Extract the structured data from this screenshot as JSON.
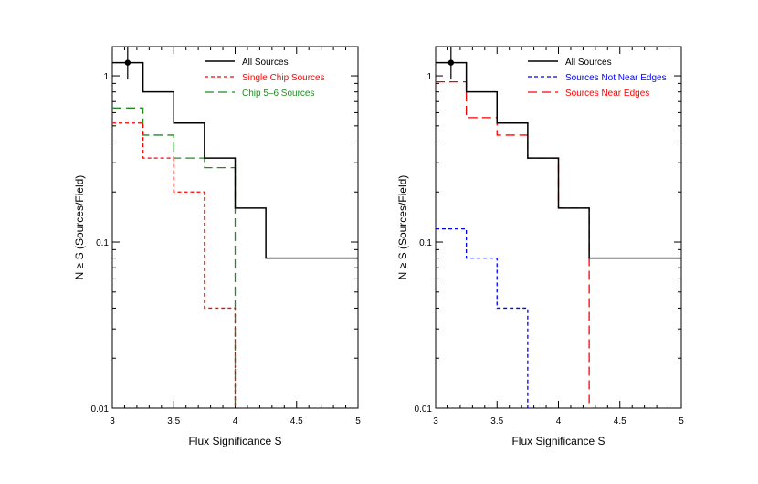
{
  "chart_data": [
    {
      "type": "step",
      "xlabel": "Flux Significance S",
      "ylabel": "N ≥ S (Sources/Field)",
      "xlim": [
        3,
        5
      ],
      "ylim": [
        0.01,
        1.5
      ],
      "yscale": "log",
      "xticks": [
        "3",
        "3.5",
        "4",
        "4.5",
        "5"
      ],
      "yticks": [
        {
          "value": 1,
          "label": "1"
        },
        {
          "value": 0.1,
          "label": "0.1"
        },
        {
          "value": 0.01,
          "label": "0.01"
        }
      ],
      "legend_position": "top-right",
      "point": {
        "x": 3.125,
        "y": 1.2,
        "yerr": [
          0.95,
          1.5
        ]
      },
      "series": [
        {
          "name": "All Sources",
          "color": "#000000",
          "dash": "solid",
          "edges": [
            3.0,
            3.25,
            3.5,
            3.75,
            4.0,
            4.25,
            5.0
          ],
          "values": [
            1.2,
            0.8,
            0.52,
            0.32,
            0.16,
            0.08
          ]
        },
        {
          "name": "Single Chip Sources",
          "color": "#ff0000",
          "dash": "short",
          "edges": [
            3.0,
            3.25,
            3.5,
            3.75,
            4.0
          ],
          "values": [
            0.52,
            0.32,
            0.2,
            0.04
          ]
        },
        {
          "name": "Chip 5–6 Sources",
          "color": "#228b22",
          "dash": "long",
          "edges": [
            3.0,
            3.25,
            3.5,
            3.75,
            4.0
          ],
          "values": [
            0.64,
            0.44,
            0.32,
            0.28
          ]
        }
      ]
    },
    {
      "type": "step",
      "xlabel": "Flux Significance S",
      "ylabel": "N ≥ S (Sources/Field)",
      "xlim": [
        3,
        5
      ],
      "ylim": [
        0.01,
        1.5
      ],
      "yscale": "log",
      "xticks": [
        "3",
        "3.5",
        "4",
        "4.5",
        "5"
      ],
      "yticks": [
        {
          "value": 1,
          "label": "1"
        },
        {
          "value": 0.1,
          "label": "0.1"
        },
        {
          "value": 0.01,
          "label": "0.01"
        }
      ],
      "legend_position": "top-right",
      "point": {
        "x": 3.125,
        "y": 1.2,
        "yerr": [
          0.95,
          1.5
        ]
      },
      "series": [
        {
          "name": "All Sources",
          "color": "#000000",
          "dash": "solid",
          "edges": [
            3.0,
            3.25,
            3.5,
            3.75,
            4.0,
            4.25,
            5.0
          ],
          "values": [
            1.2,
            0.8,
            0.52,
            0.32,
            0.16,
            0.08
          ]
        },
        {
          "name": "Sources Not Near Edges",
          "color": "#0000ff",
          "dash": "short",
          "edges": [
            3.0,
            3.25,
            3.5,
            3.75
          ],
          "values": [
            0.12,
            0.08,
            0.04
          ]
        },
        {
          "name": "Sources Near Edges",
          "color": "#ff0000",
          "dash": "long",
          "edges": [
            3.0,
            3.25,
            3.5,
            3.75,
            4.0,
            4.25
          ],
          "values": [
            0.92,
            0.56,
            0.44,
            0.32,
            0.16
          ]
        }
      ]
    }
  ]
}
